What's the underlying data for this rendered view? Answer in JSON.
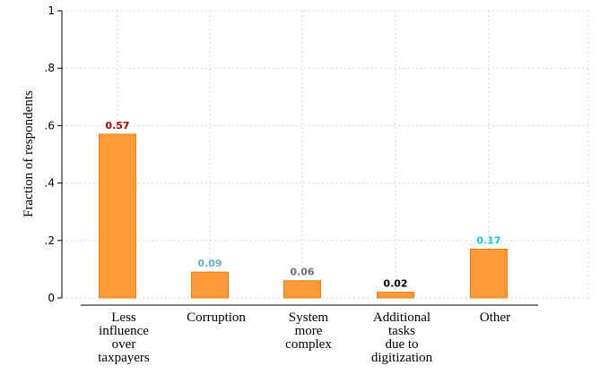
{
  "chart_data": {
    "type": "bar",
    "title": "",
    "xlabel": "",
    "ylabel": "Fraction of respondents",
    "ylim": [
      0,
      1
    ],
    "yticks": [
      {
        "value": 0,
        "label": "0"
      },
      {
        "value": 0.2,
        "label": ".2"
      },
      {
        "value": 0.4,
        "label": ".4"
      },
      {
        "value": 0.6,
        "label": ".6"
      },
      {
        "value": 0.8,
        "label": ".8"
      },
      {
        "value": 1,
        "label": "1"
      }
    ],
    "grid": true,
    "bar_color": "#fd9b3a",
    "bar_edge_color": "#f07c10",
    "categories": [
      {
        "lines": [
          "Less",
          "influence",
          "over",
          "taxpayers"
        ]
      },
      {
        "lines": [
          "Corruption"
        ]
      },
      {
        "lines": [
          "System",
          "more",
          "complex"
        ]
      },
      {
        "lines": [
          "Additional",
          "tasks",
          "due to",
          "digitization"
        ]
      },
      {
        "lines": [
          "Other"
        ]
      }
    ],
    "values": [
      0.57,
      0.09,
      0.06,
      0.02,
      0.17
    ],
    "value_labels": [
      "0.57",
      "0.09",
      "0.06",
      "0.02",
      "0.17"
    ],
    "value_label_colors": [
      "#b00000",
      "#6aaedc",
      "#707070",
      "#000000",
      "#19c8d2"
    ]
  }
}
